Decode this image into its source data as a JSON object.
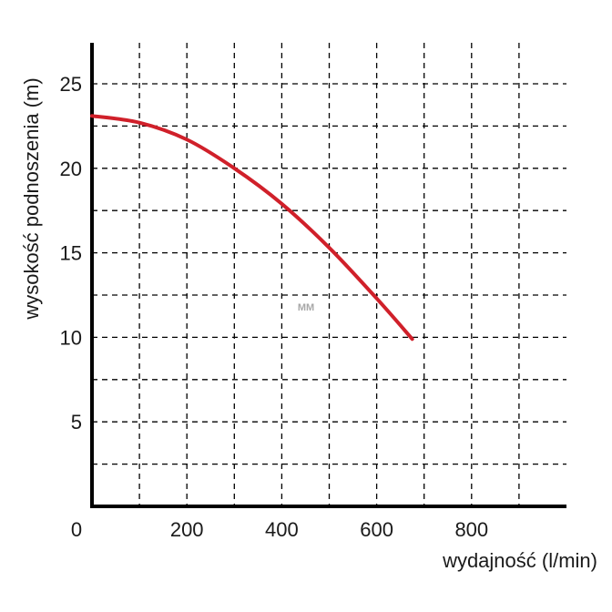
{
  "chart_data": {
    "type": "line",
    "xlabel": "wydajność (l/min)",
    "ylabel": "wysokość podnoszenia (m)",
    "xlim": [
      0,
      1000
    ],
    "ylim": [
      0,
      27.5
    ],
    "x_ticks": [
      0,
      200,
      400,
      600,
      800
    ],
    "y_ticks": [
      5,
      10,
      15,
      20,
      25
    ],
    "x_grid": [
      100,
      200,
      300,
      400,
      500,
      600,
      700,
      800,
      900
    ],
    "y_grid": [
      2.5,
      5,
      7.5,
      10,
      12.5,
      15,
      17.5,
      20,
      22.5,
      25
    ],
    "grid": true,
    "watermark": "MM",
    "colors": {
      "series": "#d0202a",
      "axis": "#000000",
      "grid": "#000000"
    },
    "series": [
      {
        "x": [
          0,
          100,
          200,
          300,
          400,
          500,
          600,
          675
        ],
        "y": [
          23.1,
          22.7,
          21.7,
          20.0,
          17.9,
          15.3,
          12.3,
          9.9
        ]
      }
    ]
  }
}
